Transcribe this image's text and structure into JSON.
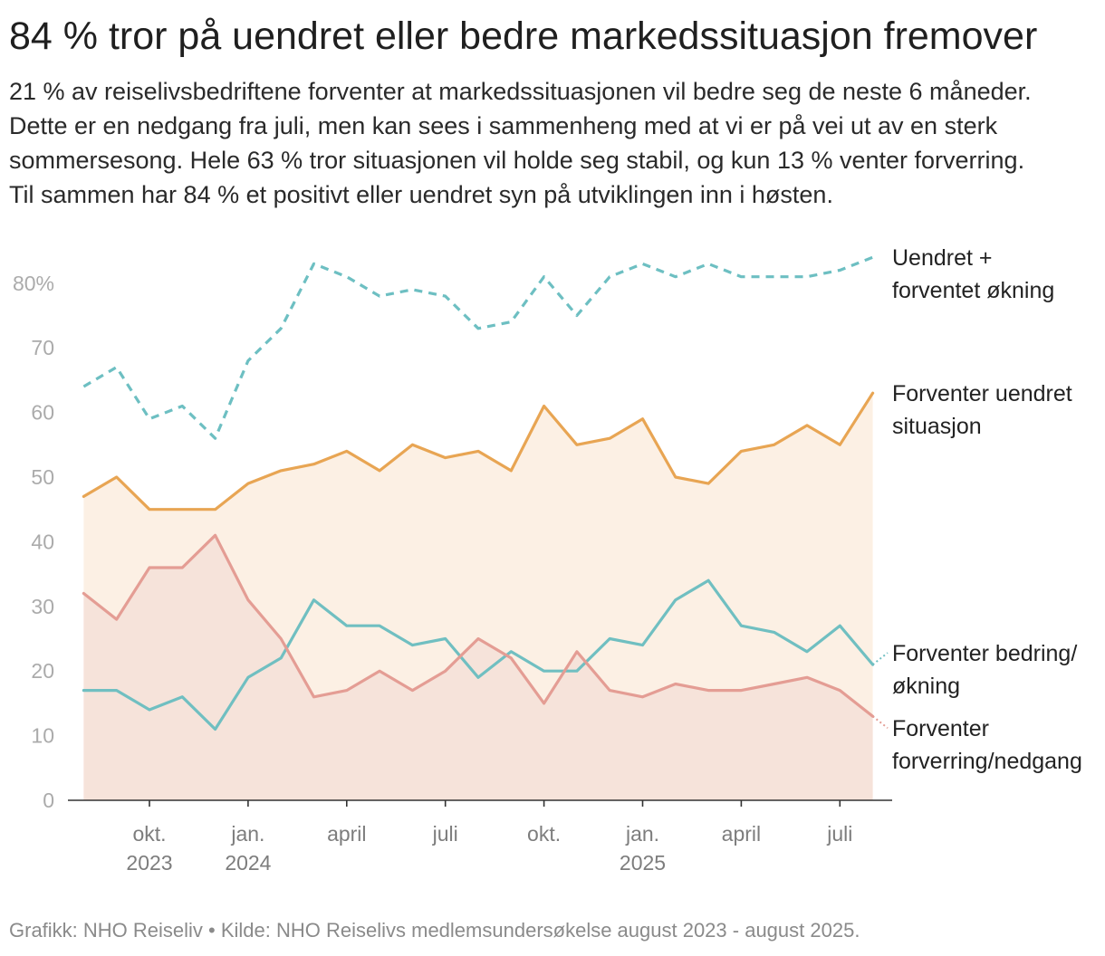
{
  "title": "84 % tror på uendret eller bedre markedssituasjon fremover",
  "subtitle_lines": [
    "21 % av reiselivsbedriftene forventer at markedssituasjonen vil bedre seg de neste 6 måneder.",
    "Dette er en nedgang fra juli, men kan sees i sammenheng med at vi er på vei ut av en sterk",
    "sommersesong. Hele 63 % tror situasjonen vil holde seg stabil, og kun 13 % venter forverring.",
    "Til sammen har 84 % et positivt eller uendret syn på utviklingen inn i høsten."
  ],
  "footer": "Grafikk: NHO Reiseliv • Kilde: NHO Reiselivs medlemsundersøkelse august 2023 - august 2025.",
  "chart_data": {
    "type": "line",
    "ylim": [
      0,
      85
    ],
    "y_ticks": [
      {
        "value": 0,
        "label": "0"
      },
      {
        "value": 10,
        "label": "10"
      },
      {
        "value": 20,
        "label": "20"
      },
      {
        "value": 30,
        "label": "30"
      },
      {
        "value": 40,
        "label": "40"
      },
      {
        "value": 50,
        "label": "50"
      },
      {
        "value": 60,
        "label": "60"
      },
      {
        "value": 70,
        "label": "70"
      },
      {
        "value": 80,
        "label": "80%"
      }
    ],
    "x_ticks": [
      {
        "index": 2,
        "label": "okt.",
        "year": "2023"
      },
      {
        "index": 5,
        "label": "jan.",
        "year": "2024"
      },
      {
        "index": 8,
        "label": "april"
      },
      {
        "index": 11,
        "label": "juli"
      },
      {
        "index": 14,
        "label": "okt."
      },
      {
        "index": 17,
        "label": "jan.",
        "year": "2025"
      },
      {
        "index": 20,
        "label": "april"
      },
      {
        "index": 23,
        "label": "juli"
      }
    ],
    "series": [
      {
        "label_lines": [
          "Uendret +",
          "forventet økning"
        ],
        "color": "#6dbfc2",
        "dashed": true,
        "fill": false,
        "values": [
          64,
          67,
          59,
          61,
          56,
          68,
          73,
          83,
          81,
          78,
          79,
          78,
          73,
          74,
          81,
          75,
          81,
          83,
          81,
          83,
          81,
          81,
          81,
          82,
          84
        ]
      },
      {
        "label_lines": [
          "Forventer uendret",
          "situasjon"
        ],
        "color": "#e8a553",
        "fill_color": "#fcf0e4",
        "dashed": false,
        "fill": true,
        "values": [
          47,
          50,
          45,
          45,
          45,
          49,
          51,
          52,
          54,
          51,
          55,
          53,
          54,
          51,
          61,
          55,
          56,
          59,
          50,
          49,
          54,
          55,
          58,
          55,
          63
        ]
      },
      {
        "label_lines": [
          "Forventer bedring/",
          "økning"
        ],
        "color": "#70bfc1",
        "dashed": false,
        "fill": false,
        "values": [
          17,
          17,
          14,
          16,
          11,
          19,
          22,
          31,
          27,
          27,
          24,
          25,
          19,
          23,
          20,
          20,
          25,
          24,
          31,
          34,
          27,
          26,
          23,
          27,
          21
        ]
      },
      {
        "label_lines": [
          "Forventer",
          "forverring/nedgang"
        ],
        "color": "#e49d94",
        "fill_color": "#f6e3da",
        "dashed": false,
        "fill": true,
        "values": [
          32,
          28,
          36,
          36,
          41,
          31,
          25,
          16,
          17,
          20,
          17,
          20,
          25,
          22,
          15,
          23,
          17,
          16,
          18,
          17,
          17,
          18,
          19,
          17,
          13
        ]
      }
    ]
  }
}
